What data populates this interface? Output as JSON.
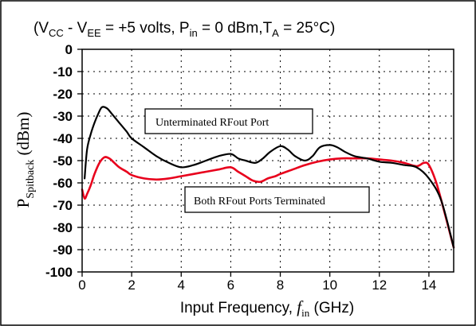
{
  "chart_data": {
    "type": "line",
    "title": {
      "open": "(V",
      "vcc_sub": "CC",
      "minus": " - V",
      "vee_sub": "EE",
      "eq": " =  +5 volts, P",
      "pin_sub": "in",
      "eq2": " =  0 dBm,T",
      "ta_sub": "A",
      "tail": " = 25°C)"
    },
    "xlabel": {
      "text": "Input Frequency, ",
      "f": "f",
      "f_sub": "in",
      "unit": " (GHz)"
    },
    "ylabel": {
      "p": "P",
      "sub": "Spitback",
      "unit": " (dBm)"
    },
    "xlim": [
      0,
      15
    ],
    "ylim": [
      -100,
      0
    ],
    "x_ticks": [
      "0",
      "2",
      "4",
      "6",
      "8",
      "10",
      "12",
      "14"
    ],
    "x_tick_values": [
      0,
      2,
      4,
      6,
      8,
      10,
      12,
      14
    ],
    "y_ticks": [
      "0",
      "-10",
      "-20",
      "-30",
      "-40",
      "-50",
      "-60",
      "-70",
      "-80",
      "-90",
      "-100"
    ],
    "y_tick_values": [
      0,
      -10,
      -20,
      -30,
      -40,
      -50,
      -60,
      -70,
      -80,
      -90,
      -100
    ],
    "grid": true,
    "series": [
      {
        "name": "Unterminated RFout Port",
        "color": "#000000",
        "x": [
          0.1,
          0.2,
          0.35,
          0.5,
          0.65,
          0.8,
          1.0,
          1.2,
          1.5,
          1.8,
          2.0,
          2.5,
          3.0,
          3.5,
          4.0,
          4.5,
          5.0,
          5.5,
          6.0,
          6.3,
          6.6,
          7.0,
          7.3,
          7.6,
          8.0,
          8.3,
          8.6,
          9.0,
          9.3,
          9.6,
          10.0,
          10.3,
          10.6,
          11.0,
          11.5,
          12.0,
          12.5,
          13.0,
          13.5,
          14.0,
          14.5,
          15.0
        ],
        "y": [
          -58,
          -45,
          -38,
          -33,
          -29,
          -26,
          -26.5,
          -29,
          -33,
          -37,
          -40,
          -44,
          -48,
          -51,
          -53,
          -52,
          -50,
          -48,
          -47,
          -49,
          -50,
          -51,
          -49,
          -46,
          -43.5,
          -45,
          -48,
          -50,
          -48,
          -44,
          -43,
          -44,
          -46,
          -48,
          -49,
          -50.5,
          -51,
          -52,
          -53,
          -58,
          -68,
          -89
        ]
      },
      {
        "name": "Both RFout Ports Terminated",
        "color": "#e8001c",
        "x": [
          0.0,
          0.1,
          0.2,
          0.35,
          0.5,
          0.7,
          0.9,
          1.1,
          1.3,
          1.5,
          1.8,
          2.0,
          2.5,
          3.0,
          3.5,
          4.0,
          4.5,
          5.0,
          5.5,
          6.0,
          6.3,
          6.6,
          6.9,
          7.2,
          7.5,
          7.8,
          8.0,
          8.5,
          9.0,
          9.5,
          10.0,
          10.5,
          11.0,
          11.5,
          12.0,
          12.5,
          13.0,
          13.5,
          13.8,
          14.0,
          14.3,
          14.6,
          15.0
        ],
        "y": [
          -63,
          -67,
          -65,
          -61,
          -56,
          -51,
          -48.5,
          -49,
          -51,
          -53,
          -55,
          -56.5,
          -58,
          -58.5,
          -58,
          -57,
          -56,
          -55,
          -54,
          -53,
          -55,
          -57,
          -59,
          -59.5,
          -58,
          -57,
          -56,
          -54,
          -52,
          -50.5,
          -49.5,
          -49,
          -49,
          -49,
          -49.5,
          -50,
          -51,
          -52.5,
          -51,
          -52,
          -60,
          -72,
          -89
        ]
      }
    ],
    "annotations": [
      {
        "text": "Unterminated RFout Port",
        "series": 0
      },
      {
        "text": "Both RFout Ports Terminated",
        "series": 1
      }
    ]
  }
}
